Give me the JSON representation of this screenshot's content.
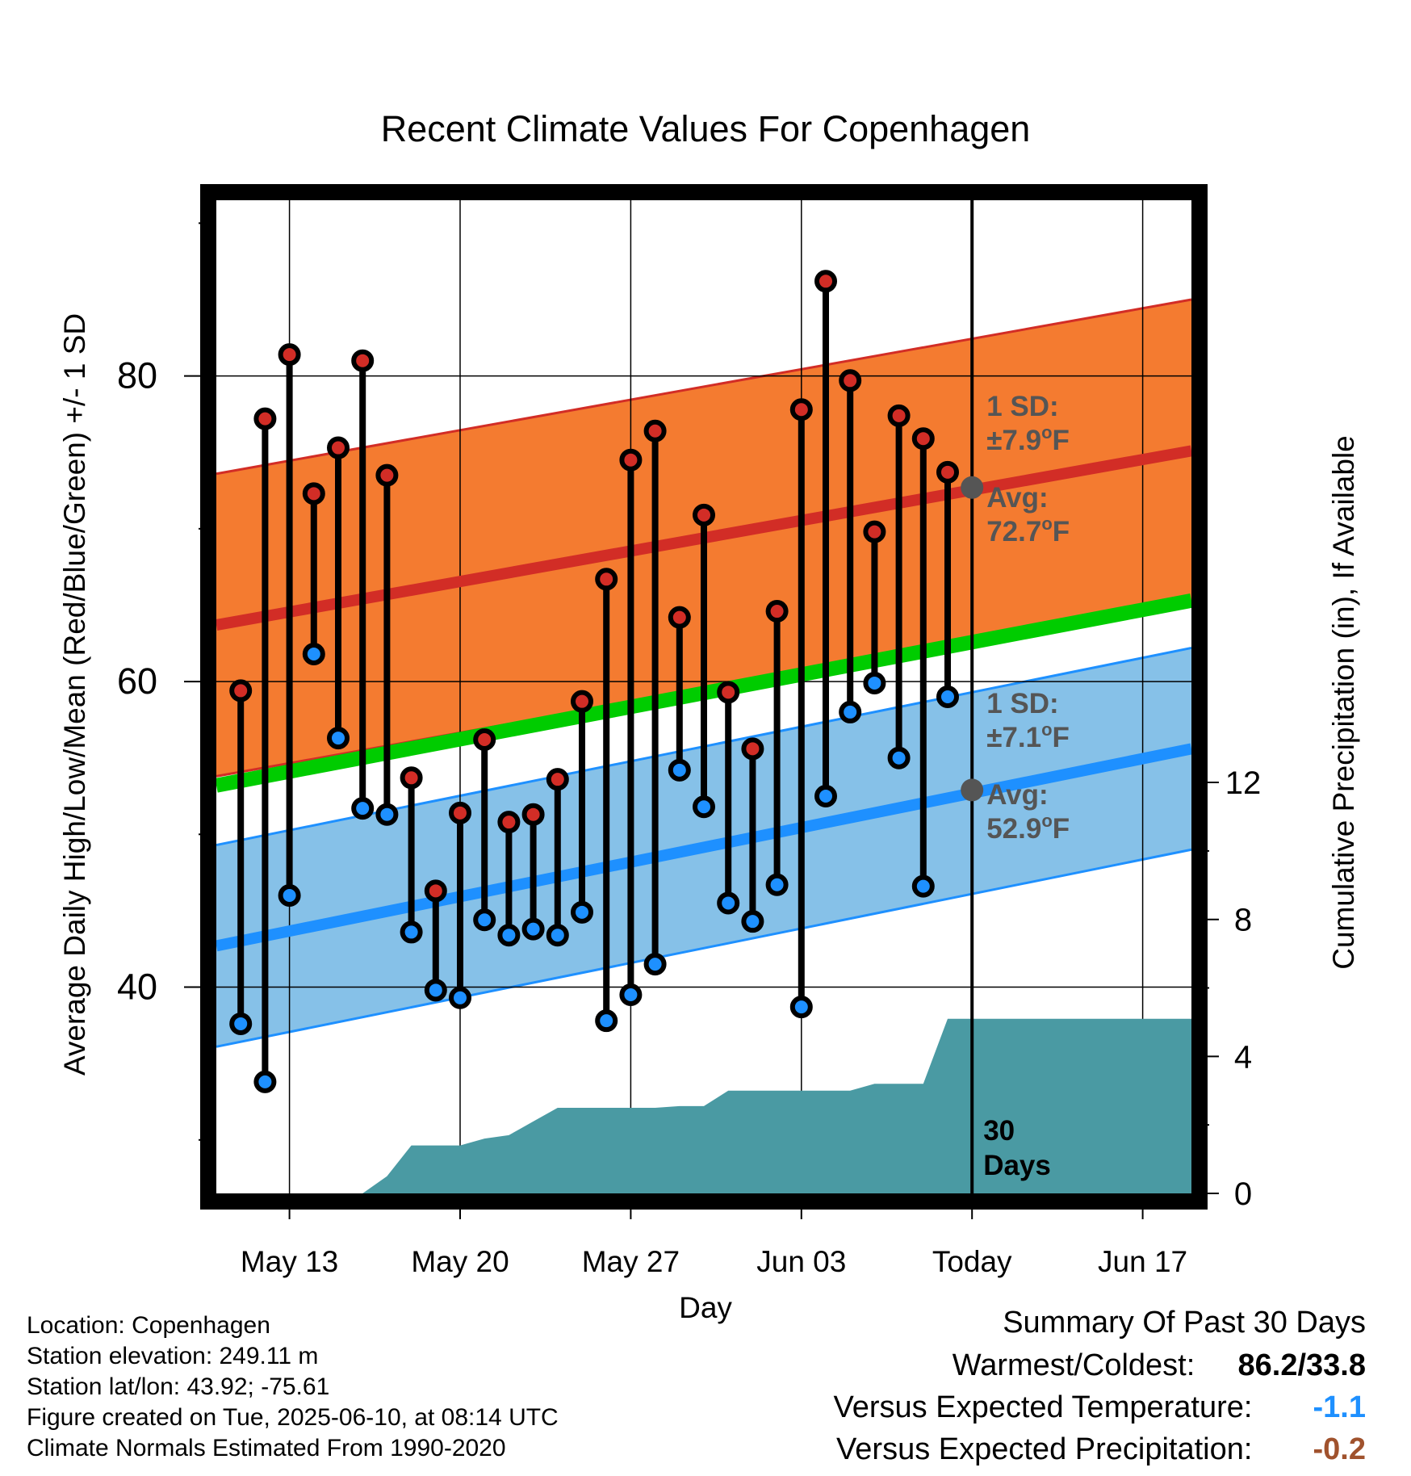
{
  "chart_data": {
    "type": "line",
    "title": "Recent Climate Values For Copenhagen",
    "xlabel": "Day",
    "ylabel": "Average Daily High/Low/Mean (Red/Blue/Green) +/- 1 SD",
    "y2label": "Cumulative Precipitation (in), If Available",
    "ylim": [
      26.5,
      91.5
    ],
    "y2lim": [
      0,
      29
    ],
    "xlim": [
      "May 10",
      "Jun 19"
    ],
    "yticks": [
      "40",
      "60",
      "80"
    ],
    "y2ticks": [
      "0",
      "4",
      "8",
      "12"
    ],
    "xticks": [
      "May 13",
      "May 20",
      "May 27",
      "Jun 03",
      "Today",
      "Jun 17"
    ],
    "today": "Jun 10",
    "colors": {
      "high": "#d22d26",
      "high_band": "#f47b30",
      "low": "#1e90ff",
      "low_band": "#86c1e8",
      "mean": "#00cc00",
      "precip": "#4a9aa3",
      "annotation": "#555555"
    },
    "normals": {
      "high_mean": {
        "start": 63.7,
        "end": 75.1
      },
      "high_sd": 9.9,
      "low_mean": {
        "start": 42.7,
        "end": 55.6
      },
      "low_sd": 6.6,
      "mean": {
        "start": 53.2,
        "end": 65.3
      }
    },
    "series": [
      {
        "name": "High",
        "dates": [
          "May 11",
          "May 12",
          "May 13",
          "May 14",
          "May 15",
          "May 16",
          "May 17",
          "May 18",
          "May 19",
          "May 20",
          "May 21",
          "May 22",
          "May 23",
          "May 24",
          "May 25",
          "May 26",
          "May 27",
          "May 28",
          "May 29",
          "May 30",
          "May 31",
          "Jun 01",
          "Jun 02",
          "Jun 03",
          "Jun 04",
          "Jun 05",
          "Jun 06",
          "Jun 07",
          "Jun 08",
          "Jun 09"
        ],
        "values": [
          59.4,
          77.2,
          81.4,
          72.3,
          75.3,
          81.0,
          73.5,
          53.7,
          46.3,
          51.4,
          56.2,
          50.8,
          51.3,
          53.6,
          58.7,
          66.7,
          74.5,
          76.4,
          64.2,
          70.9,
          59.3,
          55.6,
          64.6,
          77.8,
          86.2,
          79.7,
          69.8,
          77.4,
          75.9,
          73.7
        ]
      },
      {
        "name": "Low",
        "dates": [
          "May 11",
          "May 12",
          "May 13",
          "May 14",
          "May 15",
          "May 16",
          "May 17",
          "May 18",
          "May 19",
          "May 20",
          "May 21",
          "May 22",
          "May 23",
          "May 24",
          "May 25",
          "May 26",
          "May 27",
          "May 28",
          "May 29",
          "May 30",
          "May 31",
          "Jun 01",
          "Jun 02",
          "Jun 03",
          "Jun 04",
          "Jun 05",
          "Jun 06",
          "Jun 07",
          "Jun 08",
          "Jun 09"
        ],
        "values": [
          37.6,
          33.8,
          46.0,
          61.8,
          56.3,
          51.7,
          51.3,
          43.6,
          39.8,
          39.3,
          44.4,
          43.4,
          43.8,
          43.4,
          44.9,
          37.8,
          39.5,
          41.5,
          54.2,
          51.8,
          45.5,
          44.3,
          46.7,
          38.7,
          52.5,
          58.0,
          59.9,
          55.0,
          46.6,
          59.0
        ]
      },
      {
        "name": "Cumulative Precipitation",
        "dates": [
          "May 16",
          "May 17",
          "May 18",
          "May 19",
          "May 20",
          "May 21",
          "May 22",
          "May 23",
          "May 24",
          "May 25",
          "May 26",
          "May 27",
          "May 28",
          "May 29",
          "May 30",
          "May 31",
          "Jun 01",
          "Jun 02",
          "Jun 03",
          "Jun 04",
          "Jun 05",
          "Jun 06",
          "Jun 07",
          "Jun 08",
          "Jun 09",
          "Jun 19"
        ],
        "values": [
          0.0,
          0.5,
          1.4,
          1.4,
          1.4,
          1.6,
          1.7,
          2.1,
          2.5,
          2.5,
          2.5,
          2.5,
          2.5,
          2.55,
          2.55,
          3.0,
          3.0,
          3.0,
          3.0,
          3.0,
          3.0,
          3.2,
          3.2,
          3.2,
          5.1,
          5.1
        ]
      }
    ],
    "annotations": {
      "high_sd_label": "1 SD:",
      "high_sd_value": "±7.9",
      "high_avg_label": "Avg:",
      "high_avg_value": "72.7",
      "low_sd_label": "1 SD:",
      "low_sd_value": "±7.1",
      "low_avg_label": "Avg:",
      "low_avg_value": "52.9",
      "deg_sup": "o",
      "unit": "F",
      "period_line1": "30",
      "period_line2": "Days"
    }
  },
  "info": [
    "Location: Copenhagen",
    "Station elevation: 249.11 m",
    "Station lat/lon: 43.92; -75.61",
    "Figure created on Tue, 2025-06-10, at 08:14 UTC",
    "Climate Normals Estimated From 1990-2020"
  ],
  "summary": {
    "heading": "Summary Of Past 30 Days",
    "warm_cold_label": "Warmest/Coldest:",
    "warm_cold_value": "86.2/33.8",
    "temp_label": "Versus Expected Temperature:",
    "temp_value": "-1.1",
    "temp_color": "#1e90ff",
    "precip_label": "Versus Expected Precipitation:",
    "precip_value": "-0.2",
    "precip_color": "#a0522d"
  }
}
